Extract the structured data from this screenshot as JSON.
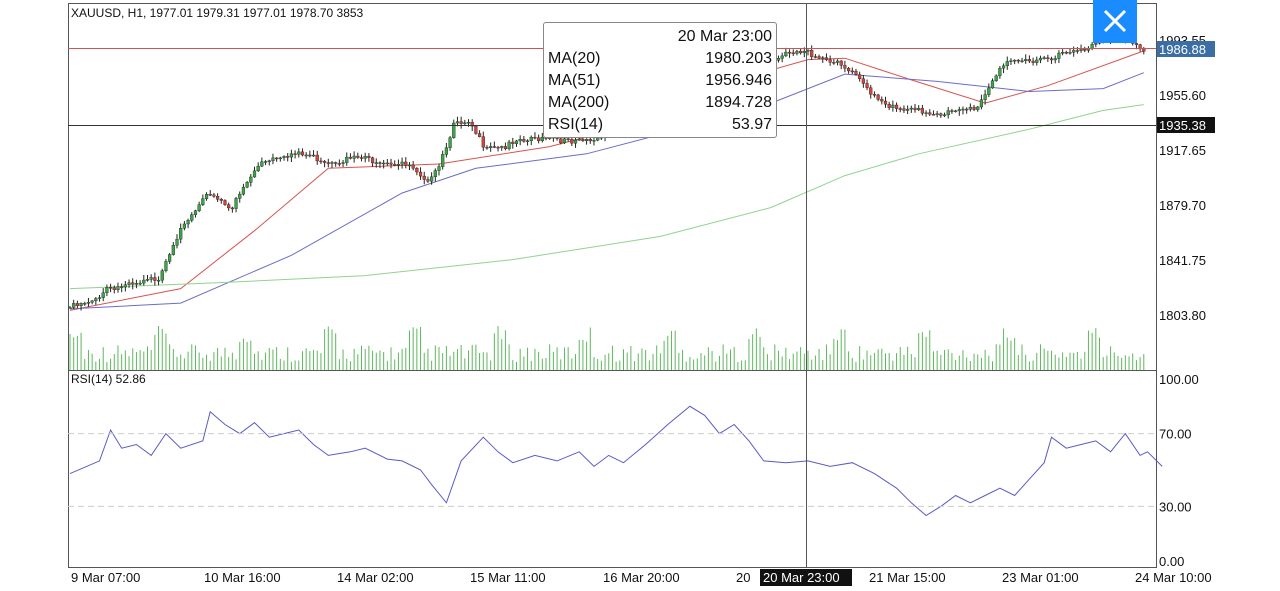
{
  "header": {
    "text": "XAUUSD, H1, 1977.01 1979.31 1977.01 1978.70 3853"
  },
  "tooltip": {
    "time": "20 Mar 23:00",
    "rows": [
      {
        "label": "MA(20)",
        "value": "1980.203"
      },
      {
        "label": "MA(51)",
        "value": "1956.946"
      },
      {
        "label": "MA(200)",
        "value": "1894.728"
      },
      {
        "label": "RSI(14)",
        "value": "53.97"
      }
    ]
  },
  "crosshair": {
    "price_label": "1935.38",
    "time_label": "20 Mar 23:00"
  },
  "close_button": {
    "icon": "close-icon"
  },
  "chart_data": {
    "type": "candlestick",
    "symbol": "XAUUSD",
    "timeframe": "H1",
    "last_price": 1986.88,
    "y_ticks": [
      "1993.55",
      "1955.60",
      "1917.65",
      "1879.70",
      "1841.75",
      "1803.80"
    ],
    "ylim": [
      1797,
      2000
    ],
    "x_ticks": [
      "9 Mar 07:00",
      "10 Mar 16:00",
      "14 Mar 02:00",
      "15 Mar 11:00",
      "16 Mar 20:00",
      "20 Mar 23:00",
      "21 Mar 15:00",
      "23 Mar 01:00",
      "24 Mar 10:00"
    ],
    "x_tick_partial": "20",
    "price_anchors": [
      [
        0,
        1809
      ],
      [
        6,
        1812
      ],
      [
        10,
        1823
      ],
      [
        18,
        1824
      ],
      [
        24,
        1830
      ],
      [
        28,
        1854
      ],
      [
        33,
        1872
      ],
      [
        38,
        1888
      ],
      [
        44,
        1878
      ],
      [
        48,
        1895
      ],
      [
        52,
        1910
      ],
      [
        58,
        1915
      ],
      [
        64,
        1914
      ],
      [
        70,
        1910
      ],
      [
        78,
        1912
      ],
      [
        86,
        1910
      ],
      [
        92,
        1906
      ],
      [
        96,
        1895
      ],
      [
        100,
        1908
      ],
      [
        104,
        1935
      ],
      [
        108,
        1935
      ],
      [
        112,
        1922
      ],
      [
        118,
        1920
      ],
      [
        124,
        1924
      ],
      [
        130,
        1928
      ],
      [
        136,
        1922
      ],
      [
        142,
        1925
      ],
      [
        150,
        1940
      ],
      [
        158,
        1962
      ],
      [
        166,
        1975
      ],
      [
        174,
        1970
      ],
      [
        180,
        1978
      ],
      [
        186,
        1980
      ],
      [
        192,
        1982
      ],
      [
        200,
        1985
      ],
      [
        206,
        1980
      ],
      [
        212,
        1970
      ],
      [
        218,
        1956
      ],
      [
        224,
        1945
      ],
      [
        232,
        1944
      ],
      [
        240,
        1943
      ],
      [
        246,
        1948
      ],
      [
        252,
        1975
      ],
      [
        260,
        1980
      ],
      [
        268,
        1983
      ],
      [
        274,
        1986
      ],
      [
        280,
        1996
      ],
      [
        286,
        1993
      ],
      [
        291,
        1987
      ]
    ],
    "moving_averages": [
      {
        "name": "MA(20)",
        "color": "#d9534f",
        "points": [
          [
            0,
            1807
          ],
          [
            30,
            1822
          ],
          [
            50,
            1862
          ],
          [
            70,
            1905
          ],
          [
            100,
            1908
          ],
          [
            130,
            1920
          ],
          [
            160,
            1940
          ],
          [
            175,
            1962
          ],
          [
            200,
            1980
          ],
          [
            210,
            1981
          ],
          [
            228,
            1966
          ],
          [
            248,
            1950
          ],
          [
            265,
            1962
          ],
          [
            291,
            1986
          ]
        ]
      },
      {
        "name": "MA(51)",
        "color": "#6c6cc8",
        "points": [
          [
            0,
            1808
          ],
          [
            30,
            1812
          ],
          [
            60,
            1845
          ],
          [
            90,
            1888
          ],
          [
            110,
            1905
          ],
          [
            140,
            1915
          ],
          [
            170,
            1935
          ],
          [
            190,
            1950
          ],
          [
            210,
            1970
          ],
          [
            235,
            1965
          ],
          [
            260,
            1958
          ],
          [
            280,
            1960
          ],
          [
            291,
            1971
          ]
        ]
      },
      {
        "name": "MA(200)",
        "color": "#8fd48f",
        "points": [
          [
            0,
            1822
          ],
          [
            40,
            1826
          ],
          [
            80,
            1831
          ],
          [
            120,
            1842
          ],
          [
            160,
            1858
          ],
          [
            190,
            1878
          ],
          [
            210,
            1900
          ],
          [
            230,
            1915
          ],
          [
            260,
            1932
          ],
          [
            280,
            1945
          ],
          [
            291,
            1949
          ]
        ]
      }
    ],
    "volume_color": "#5cb85c",
    "rsi": {
      "label": "RSI(14) 52.86",
      "color": "#5a5ac8",
      "period": 14,
      "y_ticks": [
        "100.00",
        "70.00",
        "30.00",
        "0.00"
      ],
      "levels": [
        70,
        30
      ],
      "ylim": [
        0,
        100
      ],
      "points": [
        [
          0,
          48
        ],
        [
          8,
          55
        ],
        [
          11,
          72
        ],
        [
          14,
          62
        ],
        [
          18,
          64
        ],
        [
          22,
          58
        ],
        [
          26,
          70
        ],
        [
          30,
          62
        ],
        [
          36,
          66
        ],
        [
          38,
          82
        ],
        [
          42,
          75
        ],
        [
          46,
          70
        ],
        [
          50,
          76
        ],
        [
          54,
          68
        ],
        [
          58,
          70
        ],
        [
          62,
          72
        ],
        [
          66,
          64
        ],
        [
          70,
          58
        ],
        [
          76,
          60
        ],
        [
          80,
          62
        ],
        [
          86,
          56
        ],
        [
          90,
          55
        ],
        [
          95,
          50
        ],
        [
          98,
          42
        ],
        [
          102,
          32
        ],
        [
          106,
          55
        ],
        [
          112,
          68
        ],
        [
          116,
          60
        ],
        [
          120,
          54
        ],
        [
          126,
          58
        ],
        [
          132,
          55
        ],
        [
          138,
          60
        ],
        [
          142,
          52
        ],
        [
          146,
          58
        ],
        [
          150,
          54
        ],
        [
          156,
          64
        ],
        [
          162,
          75
        ],
        [
          168,
          85
        ],
        [
          172,
          80
        ],
        [
          176,
          70
        ],
        [
          180,
          75
        ],
        [
          184,
          66
        ],
        [
          188,
          55
        ],
        [
          194,
          54
        ],
        [
          200,
          55
        ],
        [
          206,
          52
        ],
        [
          212,
          54
        ],
        [
          218,
          48
        ],
        [
          224,
          40
        ],
        [
          228,
          32
        ],
        [
          232,
          25
        ],
        [
          236,
          30
        ],
        [
          240,
          36
        ],
        [
          244,
          32
        ],
        [
          248,
          36
        ],
        [
          252,
          40
        ],
        [
          256,
          36
        ],
        [
          260,
          45
        ],
        [
          264,
          54
        ],
        [
          266,
          68
        ],
        [
          270,
          62
        ],
        [
          274,
          64
        ],
        [
          278,
          66
        ],
        [
          282,
          60
        ],
        [
          286,
          70
        ],
        [
          290,
          58
        ],
        [
          292,
          60
        ],
        [
          296,
          52
        ]
      ]
    }
  }
}
